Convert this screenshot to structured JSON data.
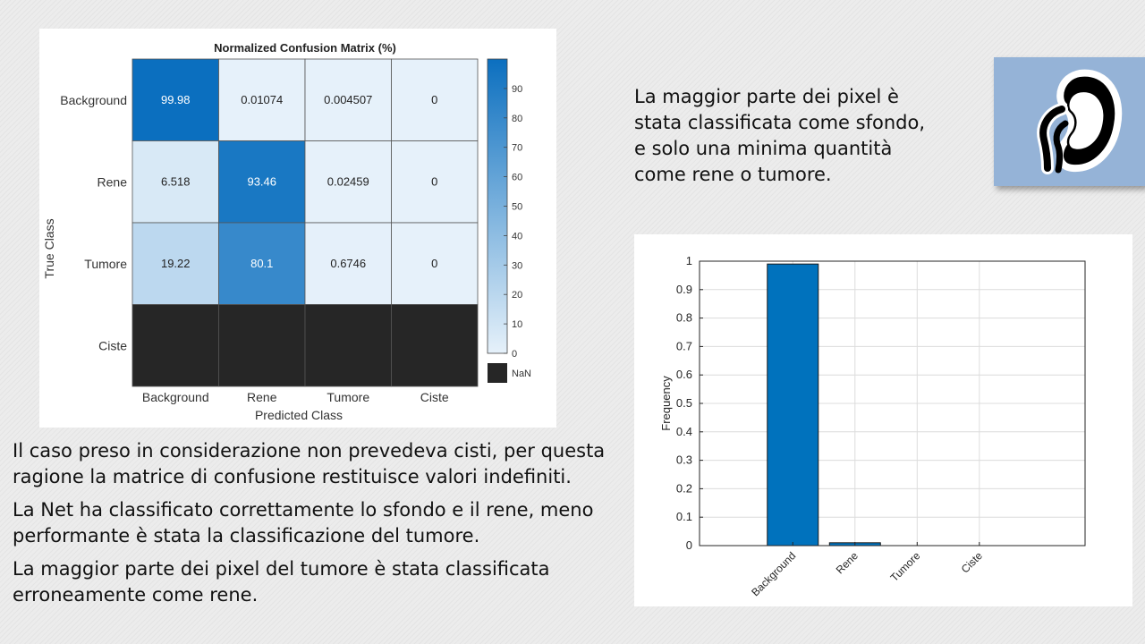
{
  "confusion_matrix": {
    "title": "Normalized Confusion Matrix (%)",
    "xlabel": "Predicted Class",
    "ylabel": "True Class",
    "predicted_classes": [
      "Background",
      "Rene",
      "Tumore",
      "Ciste"
    ],
    "true_classes": [
      "Background",
      "Rene",
      "Tumore",
      "Ciste"
    ],
    "cell_labels": [
      [
        "99.98",
        "0.01074",
        "0.004507",
        "0"
      ],
      [
        "6.518",
        "93.46",
        "0.02459",
        "0"
      ],
      [
        "19.22",
        "80.1",
        "0.6746",
        "0"
      ],
      [
        "",
        "",
        "",
        ""
      ]
    ],
    "values": [
      [
        99.98,
        0.01074,
        0.004507,
        0
      ],
      [
        6.518,
        93.46,
        0.02459,
        0
      ],
      [
        19.22,
        80.1,
        0.6746,
        0
      ],
      [
        null,
        null,
        null,
        null
      ]
    ],
    "colorbar_ticks": [
      "0",
      "10",
      "20",
      "30",
      "40",
      "50",
      "60",
      "70",
      "80",
      "90"
    ],
    "colorbar_range": [
      0,
      100
    ],
    "nan_label": "NaN",
    "colors": {
      "low": "#e6f1fa",
      "high": "#0b6fbf",
      "nan": "#262626"
    }
  },
  "chart_data": {
    "type": "bar",
    "categories": [
      "Background",
      "Rene",
      "Tumore",
      "Ciste"
    ],
    "values": [
      0.99,
      0.01,
      0,
      0
    ],
    "xlabel": "",
    "ylabel": "Frequency",
    "ylim": [
      0,
      1
    ],
    "yticks": [
      "0",
      "0.1",
      "0.2",
      "0.3",
      "0.4",
      "0.5",
      "0.6",
      "0.7",
      "0.8",
      "0.9",
      "1"
    ],
    "bar_color": "#0072bd"
  },
  "top_text": "La maggior parte dei pixel è stata classificata come sfondo, e solo una minima quantità come rene o tumore.",
  "bottom_text": [
    "Il caso preso in considerazione non prevedeva cisti, per questa ragione la matrice di confusione restituisce valori indefiniti.",
    "La Net ha classificato correttamente lo sfondo e il rene, meno performante è stata la classificazione del tumore.",
    "La maggior parte dei pixel del tumore è stata classificata erroneamente come rene."
  ],
  "kidney_icon": "kidney-icon"
}
